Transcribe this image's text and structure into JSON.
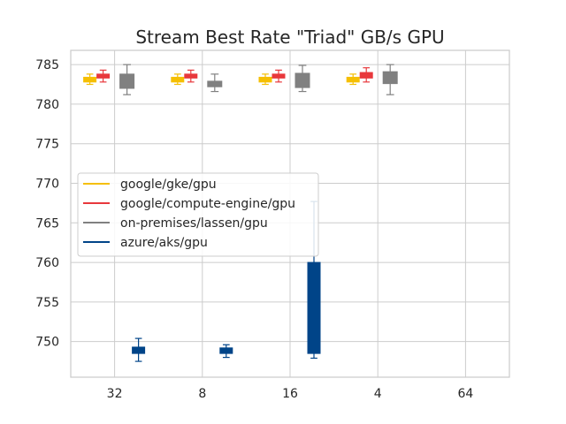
{
  "chart_data": {
    "type": "box",
    "title": "Stream Best Rate \"Triad\" GB/s GPU",
    "xlabel": "",
    "ylabel": "",
    "categories": [
      "32",
      "8",
      "16",
      "4",
      "64"
    ],
    "ylim": [
      745.5,
      786.8
    ],
    "yticks": [
      750,
      755,
      760,
      765,
      770,
      775,
      780,
      785
    ],
    "grid": true,
    "legend_position": "center-left",
    "series": [
      {
        "name": "google/gke/gpu",
        "color": "#f5bf03",
        "boxes": [
          {
            "category": "32",
            "whisker_low": 782.5,
            "q1": 782.8,
            "median": 783.1,
            "q3": 783.4,
            "whisker_high": 783.8
          },
          {
            "category": "8",
            "whisker_low": 782.5,
            "q1": 782.8,
            "median": 783.1,
            "q3": 783.4,
            "whisker_high": 783.8
          },
          {
            "category": "16",
            "whisker_low": 782.5,
            "q1": 782.8,
            "median": 783.1,
            "q3": 783.4,
            "whisker_high": 783.8
          },
          {
            "category": "4",
            "whisker_low": 782.5,
            "q1": 782.8,
            "median": 783.1,
            "q3": 783.4,
            "whisker_high": 783.8
          }
        ]
      },
      {
        "name": "google/compute-engine/gpu",
        "color": "#e8383c",
        "boxes": [
          {
            "category": "32",
            "whisker_low": 782.8,
            "q1": 783.3,
            "median": 783.5,
            "q3": 783.8,
            "whisker_high": 784.3
          },
          {
            "category": "8",
            "whisker_low": 782.8,
            "q1": 783.3,
            "median": 783.5,
            "q3": 783.8,
            "whisker_high": 784.3
          },
          {
            "category": "16",
            "whisker_low": 782.8,
            "q1": 783.3,
            "median": 783.5,
            "q3": 783.8,
            "whisker_high": 784.3
          },
          {
            "category": "4",
            "whisker_low": 782.8,
            "q1": 783.3,
            "median": 783.6,
            "q3": 784.0,
            "whisker_high": 784.6
          }
        ]
      },
      {
        "name": "on-premises/lassen/gpu",
        "color": "#808080",
        "boxes": [
          {
            "category": "32",
            "whisker_low": 781.2,
            "q1": 782.0,
            "median": 783.0,
            "q3": 783.8,
            "whisker_high": 785.0
          },
          {
            "category": "8",
            "whisker_low": 781.6,
            "q1": 782.2,
            "median": 782.5,
            "q3": 782.9,
            "whisker_high": 783.8
          },
          {
            "category": "16",
            "whisker_low": 781.6,
            "q1": 782.1,
            "median": 783.0,
            "q3": 783.9,
            "whisker_high": 784.9
          },
          {
            "category": "4",
            "whisker_low": 781.2,
            "q1": 782.6,
            "median": 783.3,
            "q3": 784.1,
            "whisker_high": 785.0
          }
        ]
      },
      {
        "name": "azure/aks/gpu",
        "color": "#004488",
        "boxes": [
          {
            "category": "32",
            "whisker_low": 747.5,
            "q1": 748.5,
            "median": 749.0,
            "q3": 749.3,
            "whisker_high": 750.4
          },
          {
            "category": "8",
            "whisker_low": 748.0,
            "q1": 748.5,
            "median": 748.9,
            "q3": 749.2,
            "whisker_high": 749.6
          },
          {
            "category": "16",
            "whisker_low": 747.9,
            "q1": 748.5,
            "median": 754.0,
            "q3": 760.0,
            "whisker_high": 767.7
          }
        ]
      }
    ]
  }
}
